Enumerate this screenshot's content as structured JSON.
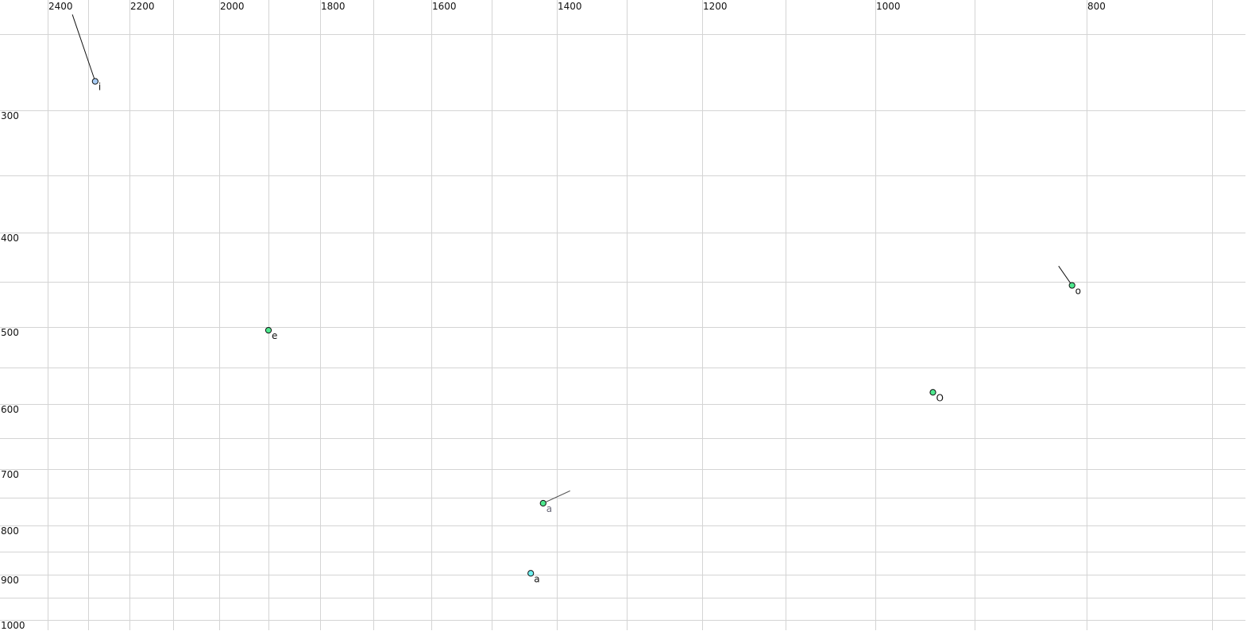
{
  "chart_data": {
    "type": "scatter",
    "title": "",
    "xlabel": "",
    "ylabel": "",
    "x_axis_reversed": true,
    "y_axis_reversed": true,
    "x_scale": "nonlinear (auditory)",
    "y_scale": "nonlinear (auditory)",
    "grid": true,
    "xlim": [
      2450,
      650
    ],
    "ylim": [
      230,
      1010
    ],
    "x_tick_labels": [
      "2400",
      "2200",
      "2000",
      "1800",
      "1600",
      "1400",
      "1200",
      "1000",
      "800"
    ],
    "y_tick_labels": [
      "300",
      "400",
      "500",
      "600",
      "700",
      "800",
      "900",
      "1000"
    ],
    "colors": {
      "blue": "#a8ccf4",
      "green": "#4ee88e",
      "cyan": "#6ff0f0",
      "grid": "#d4d4d4"
    },
    "points": [
      {
        "label": "i",
        "x": 2283,
        "y": 281,
        "color": "#a8ccf4",
        "trail_from": {
          "x": 2339,
          "y": 238
        },
        "label_muted": false
      },
      {
        "label": "e",
        "x": 1900,
        "y": 504,
        "color": "#4ee88e",
        "label_muted": false
      },
      {
        "label": "a",
        "x": 1421,
        "y": 760,
        "color": "#4ee88e",
        "trail_from": {
          "x": 1381,
          "y": 738
        },
        "label_muted": true
      },
      {
        "label": "a",
        "x": 1440,
        "y": 897,
        "color": "#6ff0f0",
        "label_muted": false
      },
      {
        "label": "O",
        "x": 942,
        "y": 584,
        "color": "#4ee88e",
        "label_muted": false
      },
      {
        "label": "o",
        "x": 813,
        "y": 454,
        "color": "#4ee88e",
        "trail_from": {
          "x": 825,
          "y": 434
        },
        "label_muted": false
      }
    ]
  }
}
